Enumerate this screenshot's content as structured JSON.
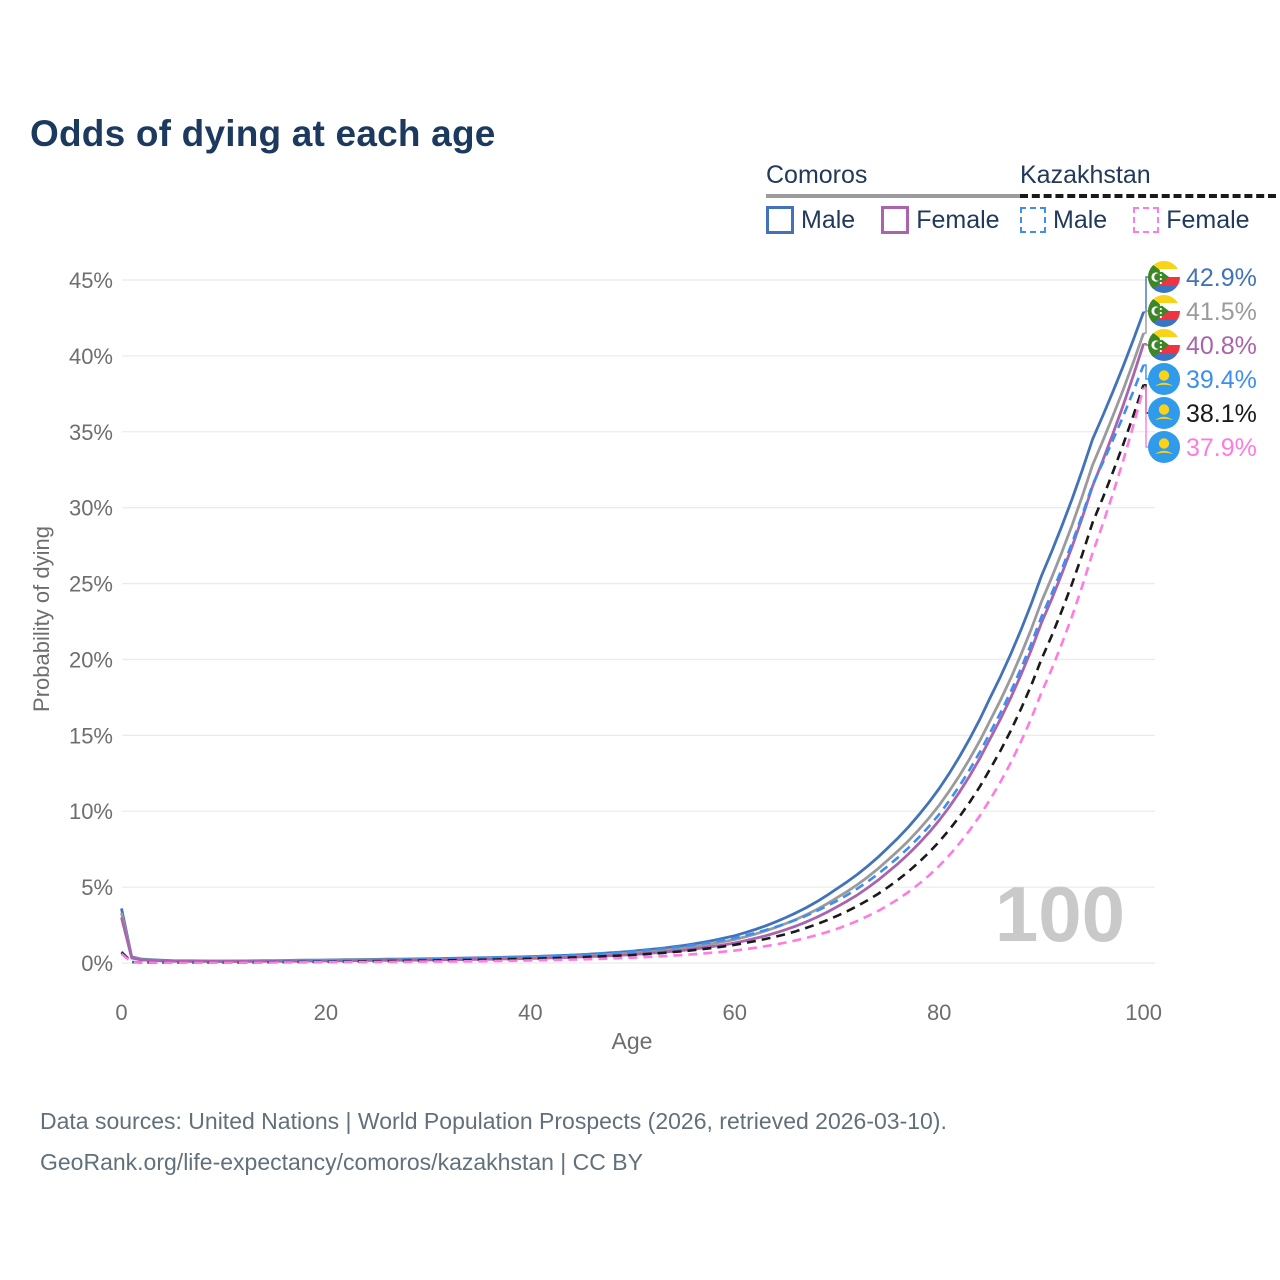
{
  "title": "Odds of dying at each age",
  "legend": {
    "groups": [
      {
        "label": "Comoros",
        "line_style": "solid",
        "line_color": "#9b9b9b",
        "items": [
          {
            "label": "Male",
            "color": "#4273b8"
          },
          {
            "label": "Female",
            "color": "#a964ad"
          }
        ]
      },
      {
        "label": "Kazakhstan",
        "line_style": "dashed",
        "line_color": "#1a1a1a",
        "items": [
          {
            "label": "Male",
            "color": "#3e8ef0"
          },
          {
            "label": "Female",
            "color": "#ff7be0"
          }
        ]
      }
    ]
  },
  "axes": {
    "x_label": "Age",
    "y_label": "Probability of dying",
    "x_ticks": [
      "0",
      "20",
      "40",
      "60",
      "80",
      "100"
    ],
    "y_ticks": [
      "0%",
      "5%",
      "10%",
      "15%",
      "20%",
      "25%",
      "30%",
      "35%",
      "40%",
      "45%"
    ]
  },
  "watermark": "100",
  "chart_data": {
    "type": "line",
    "title": "Odds of dying at each age",
    "xlabel": "Age",
    "ylabel": "Probability of dying",
    "xlim": [
      0,
      100
    ],
    "ylim": [
      0,
      45
    ],
    "y_unit": "%",
    "grid": true,
    "legend_position": "top-right",
    "ages": [
      0,
      1,
      2,
      5,
      10,
      15,
      20,
      25,
      30,
      35,
      40,
      45,
      50,
      55,
      60,
      65,
      70,
      75,
      80,
      85,
      90,
      95,
      100
    ],
    "series": [
      {
        "name": "Comoros Male",
        "country": "Comoros",
        "sex": "Male",
        "color": "#4273b8",
        "dash": false,
        "flag": "comoros",
        "end_value": 42.9,
        "end_label": "42.9%",
        "values": [
          3.6,
          0.4,
          0.25,
          0.15,
          0.13,
          0.16,
          0.2,
          0.24,
          0.28,
          0.34,
          0.42,
          0.55,
          0.78,
          1.15,
          1.8,
          3.0,
          4.9,
          7.6,
          11.5,
          17.5,
          25.5,
          34.5,
          42.9
        ]
      },
      {
        "name": "Comoros",
        "country": "Comoros",
        "sex": "Both",
        "color": "#9b9b9b",
        "dash": false,
        "flag": "comoros",
        "end_value": 41.5,
        "end_label": "41.5%",
        "values": [
          3.3,
          0.36,
          0.22,
          0.13,
          0.11,
          0.14,
          0.17,
          0.2,
          0.24,
          0.29,
          0.36,
          0.47,
          0.66,
          0.98,
          1.55,
          2.6,
          4.3,
          6.8,
          10.4,
          16.0,
          23.8,
          32.8,
          41.5
        ]
      },
      {
        "name": "Comoros Female",
        "country": "Comoros",
        "sex": "Female",
        "color": "#a964ad",
        "dash": false,
        "flag": "comoros",
        "end_value": 40.8,
        "end_label": "40.8%",
        "values": [
          3.0,
          0.33,
          0.2,
          0.12,
          0.1,
          0.12,
          0.14,
          0.17,
          0.2,
          0.24,
          0.3,
          0.4,
          0.56,
          0.84,
          1.32,
          2.2,
          3.7,
          6.0,
          9.4,
          14.8,
          22.4,
          31.4,
          40.8
        ]
      },
      {
        "name": "Kazakhstan Male",
        "country": "Kazakhstan",
        "sex": "Male",
        "color": "#3e8ef0",
        "dash": true,
        "flag": "kazakhstan",
        "end_value": 39.4,
        "end_label": "39.4%",
        "values": [
          0.75,
          0.06,
          0.04,
          0.03,
          0.03,
          0.07,
          0.12,
          0.18,
          0.25,
          0.33,
          0.42,
          0.55,
          0.75,
          1.1,
          1.65,
          2.6,
          4.1,
          6.4,
          9.8,
          15.2,
          22.8,
          31.5,
          39.4
        ]
      },
      {
        "name": "Kazakhstan",
        "country": "Kazakhstan",
        "sex": "Both",
        "color": "#1a1a1a",
        "dash": true,
        "flag": "kazakhstan",
        "end_value": 38.1,
        "end_label": "38.1%",
        "values": [
          0.68,
          0.05,
          0.035,
          0.025,
          0.025,
          0.05,
          0.08,
          0.12,
          0.16,
          0.21,
          0.28,
          0.38,
          0.53,
          0.78,
          1.2,
          1.9,
          3.1,
          5.0,
          8.0,
          12.8,
          20.0,
          29.0,
          38.1
        ]
      },
      {
        "name": "Kazakhstan Female",
        "country": "Kazakhstan",
        "sex": "Female",
        "color": "#ff7be0",
        "dash": true,
        "flag": "kazakhstan",
        "end_value": 37.9,
        "end_label": "37.9%",
        "values": [
          0.6,
          0.045,
          0.03,
          0.02,
          0.02,
          0.035,
          0.05,
          0.07,
          0.09,
          0.12,
          0.17,
          0.24,
          0.35,
          0.53,
          0.82,
          1.35,
          2.25,
          3.8,
          6.4,
          10.8,
          17.8,
          27.0,
          37.9
        ]
      }
    ]
  },
  "footer": {
    "line1": "Data sources: United Nations | World Population Prospects (2026, retrieved 2026-03-10).",
    "line2": "GeoRank.org/life-expectancy/comoros/kazakhstan | CC BY"
  }
}
